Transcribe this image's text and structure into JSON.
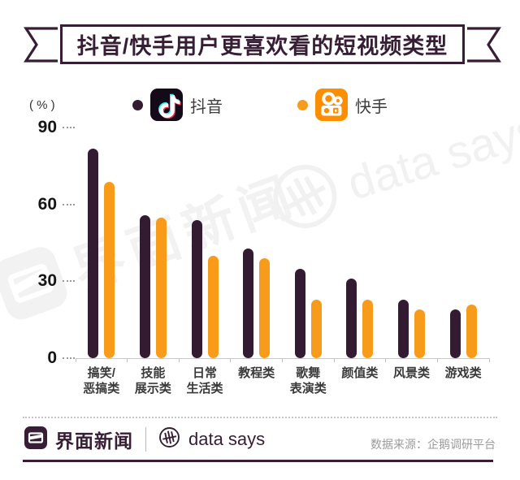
{
  "title": "抖音/快手用户更喜欢看的短视频类型",
  "colors": {
    "primary_dark": "#371E35",
    "douyin_bar": "#331C31",
    "kuaishou_bar": "#F89B1B",
    "kuaishou_brand": "#FB8F00",
    "douyin_cyan": "#25F4EE",
    "douyin_red": "#FE2C55",
    "axis_line": "#C9C9C9"
  },
  "legend": [
    {
      "label": "抖音",
      "color": "#331C31",
      "icon": "douyin-app-icon"
    },
    {
      "label": "快手",
      "color": "#F89B1B",
      "icon": "kuaishou-app-icon"
    }
  ],
  "chart_data": {
    "type": "bar",
    "title": "抖音/快手用户更喜欢看的短视频类型",
    "unit": "( % )",
    "categories": [
      "搞笑/恶搞类",
      "技能展示类",
      "日常生活类",
      "教程类",
      "歌舞表演类",
      "颜值类",
      "风景类",
      "游戏类"
    ],
    "category_lines": [
      [
        "搞笑/",
        "恶搞类"
      ],
      [
        "技能",
        "展示类"
      ],
      [
        "日常",
        "生活类"
      ],
      [
        "教程类"
      ],
      [
        "歌舞",
        "表演类"
      ],
      [
        "颜值类"
      ],
      [
        "风景类"
      ],
      [
        "游戏类"
      ]
    ],
    "series": [
      {
        "name": "抖音",
        "color": "#331C31",
        "values": [
          82,
          56,
          54,
          43,
          35,
          31,
          23,
          19
        ]
      },
      {
        "name": "快手",
        "color": "#F89B1B",
        "values": [
          69,
          55,
          40,
          39,
          23,
          23,
          19,
          21
        ]
      }
    ],
    "ylim": [
      0,
      90
    ],
    "yticks": [
      0,
      30,
      60,
      90
    ],
    "ylabel": "( % )",
    "xlabel": "",
    "grid": false,
    "legend_position": "top"
  },
  "watermarks": {
    "jiemian_text": "界面新闻",
    "datasays_text": "data says"
  },
  "footer": {
    "brand": "界面新闻",
    "datasays": "data says",
    "source": "数据来源：企鹅调研平台"
  }
}
